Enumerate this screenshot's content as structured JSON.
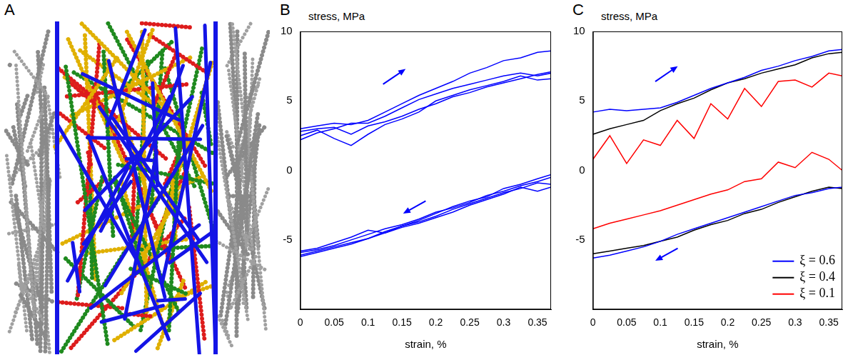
{
  "panel_a": {
    "label": "A"
  },
  "chart_data": [
    {
      "panel": "B",
      "type": "line",
      "ylabel": "stress, MPa",
      "xlabel": "strain, %",
      "x": [
        0,
        0.025,
        0.05,
        0.075,
        0.1,
        0.125,
        0.15,
        0.175,
        0.2,
        0.225,
        0.25,
        0.275,
        0.3,
        0.325,
        0.35,
        0.37,
        0.37,
        0.35,
        0.325,
        0.3,
        0.275,
        0.25,
        0.225,
        0.2,
        0.175,
        0.15,
        0.125,
        0.1,
        0.075,
        0.05,
        0.025,
        0
      ],
      "xlim": [
        0,
        0.37
      ],
      "xticks": [
        0,
        0.05,
        0.1,
        0.15,
        0.2,
        0.25,
        0.3,
        0.35
      ],
      "ylim": [
        -10,
        10
      ],
      "yticks": [
        -5,
        0,
        5,
        10
      ],
      "grid": false,
      "series": [
        {
          "color": "#0000ff",
          "values": [
            3.0,
            3.2,
            3.4,
            3.3,
            3.6,
            4.2,
            4.8,
            5.4,
            5.9,
            6.4,
            7.0,
            7.4,
            7.9,
            8.1,
            8.5,
            8.6,
            -1.0,
            -0.9,
            -1.3,
            -1.6,
            -2.0,
            -2.4,
            -2.8,
            -3.3,
            -3.7,
            -4.0,
            -4.4,
            -4.9,
            -5.3,
            -5.6,
            -5.9,
            -6.2
          ]
        },
        {
          "color": "#0000ff",
          "values": [
            2.8,
            3.0,
            3.1,
            2.6,
            3.2,
            3.5,
            3.9,
            4.4,
            4.8,
            5.3,
            5.6,
            6.0,
            6.3,
            6.6,
            6.9,
            7.1,
            -0.5,
            -0.8,
            -1.1,
            -1.5,
            -1.8,
            -2.3,
            -2.7,
            -3.0,
            -3.5,
            -3.9,
            -4.2,
            -4.6,
            -5.0,
            -5.4,
            -5.7,
            -5.9
          ]
        },
        {
          "color": "#0000ff",
          "values": [
            2.5,
            2.9,
            2.3,
            1.8,
            2.6,
            3.3,
            3.7,
            4.2,
            5.0,
            5.4,
            5.8,
            6.1,
            6.4,
            6.8,
            6.5,
            6.6,
            -1.2,
            -1.5,
            -1.2,
            -1.7,
            -2.1,
            -2.5,
            -3.0,
            -3.4,
            -3.8,
            -4.1,
            -4.5,
            -4.3,
            -4.8,
            -5.2,
            -5.6,
            -5.8
          ]
        },
        {
          "color": "#0000ff",
          "values": [
            2.2,
            2.7,
            3.0,
            3.4,
            3.4,
            3.9,
            4.5,
            5.1,
            5.5,
            5.9,
            6.2,
            6.5,
            6.8,
            7.0,
            6.8,
            7.0,
            -0.3,
            -0.6,
            -1.0,
            -1.3,
            -1.9,
            -2.2,
            -2.6,
            -3.1,
            -3.6,
            -4.0,
            -4.5,
            -4.9,
            -5.2,
            -5.5,
            -5.8,
            -6.1
          ]
        }
      ]
    },
    {
      "panel": "C",
      "type": "line",
      "ylabel": "stress, MPa",
      "xlabel": "strain, %",
      "x": [
        0,
        0.025,
        0.05,
        0.075,
        0.1,
        0.125,
        0.15,
        0.175,
        0.2,
        0.225,
        0.25,
        0.275,
        0.3,
        0.325,
        0.35,
        0.37,
        0.37,
        0.35,
        0.325,
        0.3,
        0.275,
        0.25,
        0.225,
        0.2,
        0.175,
        0.15,
        0.125,
        0.1,
        0.075,
        0.05,
        0.025,
        0
      ],
      "xlim": [
        0,
        0.37
      ],
      "xticks": [
        0,
        0.05,
        0.1,
        0.15,
        0.2,
        0.25,
        0.3,
        0.35
      ],
      "ylim": [
        -10,
        10
      ],
      "yticks": [
        -5,
        0,
        5,
        10
      ],
      "grid": false,
      "legend": "lower right",
      "series": [
        {
          "name": "ξ = 0.6",
          "color": "#0000ff",
          "values": [
            4.2,
            4.4,
            4.3,
            4.4,
            4.5,
            4.9,
            5.4,
            5.9,
            6.3,
            6.7,
            7.2,
            7.5,
            7.9,
            8.2,
            8.6,
            8.7,
            -1.2,
            -1.3,
            -1.6,
            -1.8,
            -2.2,
            -2.6,
            -3.0,
            -3.4,
            -3.8,
            -4.2,
            -4.6,
            -5.1,
            -5.5,
            -5.8,
            -6.1,
            -6.3
          ]
        },
        {
          "name": "ξ = 0.4",
          "color": "#000000",
          "values": [
            2.6,
            3.0,
            3.3,
            3.6,
            4.3,
            4.8,
            5.2,
            5.8,
            6.3,
            6.6,
            7.0,
            7.3,
            7.6,
            8.1,
            8.4,
            8.5,
            -1.3,
            -1.2,
            -1.5,
            -1.9,
            -2.3,
            -2.8,
            -3.1,
            -3.6,
            -3.9,
            -4.3,
            -4.8,
            -5.1,
            -5.4,
            -5.6,
            -5.8,
            -6.0
          ]
        },
        {
          "name": "ξ = 0.1",
          "color": "#ff0000",
          "values": [
            0.8,
            2.5,
            0.5,
            2.2,
            1.8,
            3.6,
            2.3,
            4.8,
            3.7,
            5.9,
            4.6,
            6.4,
            6.5,
            6.0,
            7.0,
            6.8,
            0.0,
            0.8,
            1.3,
            0.2,
            0.6,
            -0.6,
            -0.8,
            -1.4,
            -1.7,
            -2.1,
            -2.5,
            -2.9,
            -3.2,
            -3.5,
            -3.8,
            -4.2
          ]
        }
      ]
    }
  ]
}
